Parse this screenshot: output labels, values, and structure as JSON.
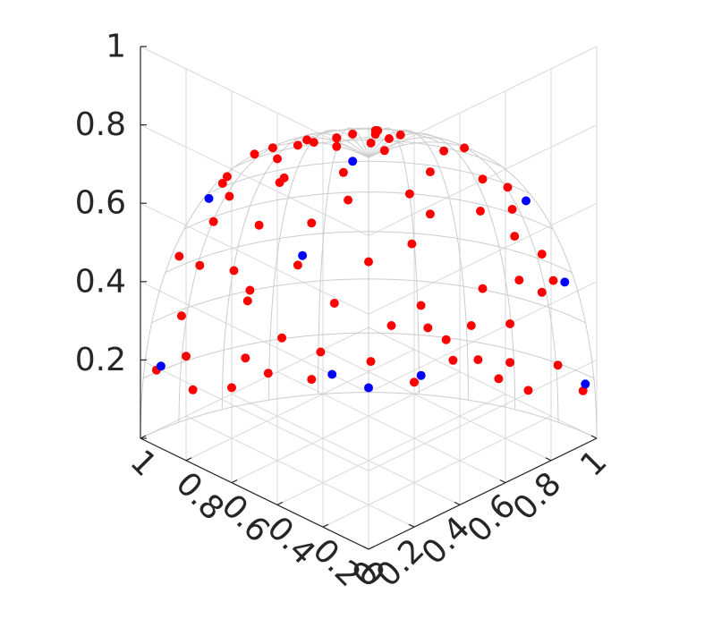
{
  "chart_data": {
    "type": "scatter",
    "projection": "3d-isometric",
    "title": "",
    "xlabel": "",
    "ylabel": "",
    "zlabel": "",
    "xlim": [
      0,
      1
    ],
    "ylim": [
      0,
      1
    ],
    "zlim": [
      0,
      1
    ],
    "x_ticks": [
      "0",
      "0.2",
      "0.4",
      "0.6",
      "0.8",
      "1"
    ],
    "y_ticks": [
      "0",
      "0.2",
      "0.4",
      "0.6",
      "0.8",
      "1"
    ],
    "z_ticks": [
      "0.2",
      "0.4",
      "0.6",
      "0.8",
      "1"
    ],
    "grid": true,
    "surface": "unit-sphere-octant-wireframe",
    "colors": {
      "red": "#ff0000",
      "blue": "#0000ff",
      "grid": "#d9d9d9",
      "axis": "#262626"
    },
    "series": [
      {
        "color": "#ff0000",
        "points": [
          [
            0.06,
            0.07,
            1.0
          ],
          [
            0.21,
            0.07,
            0.97
          ],
          [
            0.32,
            0.05,
            0.94
          ],
          [
            0.16,
            0.19,
            0.96
          ],
          [
            0.23,
            0.26,
            0.93
          ],
          [
            0.43,
            0.01,
            0.9
          ],
          [
            0.3,
            0.16,
            0.92
          ],
          [
            0.19,
            0.33,
            0.91
          ],
          [
            0.08,
            0.5,
            0.86
          ],
          [
            0.53,
            0.03,
            0.85
          ],
          [
            0.4,
            0.16,
            0.88
          ],
          [
            0.26,
            0.3,
            0.91
          ],
          [
            0.2,
            0.53,
            0.81
          ],
          [
            0.09,
            0.7,
            0.7
          ],
          [
            0.63,
            0.01,
            0.77
          ],
          [
            0.51,
            0.2,
            0.83
          ],
          [
            0.37,
            0.3,
            0.87
          ],
          [
            0.34,
            0.43,
            0.83
          ],
          [
            0.33,
            0.6,
            0.7
          ],
          [
            0.2,
            0.7,
            0.69
          ],
          [
            0.14,
            0.77,
            0.61
          ],
          [
            0.68,
            0.04,
            0.73
          ],
          [
            0.6,
            0.2,
            0.77
          ],
          [
            0.49,
            0.35,
            0.79
          ],
          [
            0.42,
            0.49,
            0.76
          ],
          [
            0.47,
            0.65,
            0.59
          ],
          [
            0.29,
            0.78,
            0.56
          ],
          [
            0.19,
            0.83,
            0.51
          ],
          [
            0.73,
            0.12,
            0.66
          ],
          [
            0.64,
            0.27,
            0.69
          ],
          [
            0.57,
            0.46,
            0.67
          ],
          [
            0.44,
            0.71,
            0.53
          ],
          [
            0.36,
            0.86,
            0.32
          ],
          [
            0.23,
            0.89,
            0.37
          ],
          [
            0.12,
            0.88,
            0.47
          ],
          [
            0.87,
            0.04,
            0.49
          ],
          [
            0.81,
            0.13,
            0.57
          ],
          [
            0.7,
            0.31,
            0.65
          ],
          [
            0.63,
            0.54,
            0.56
          ],
          [
            0.54,
            0.73,
            0.42
          ],
          [
            0.43,
            0.88,
            0.2
          ],
          [
            0.3,
            0.92,
            0.23
          ],
          [
            0.16,
            0.92,
            0.35
          ],
          [
            0.1,
            0.91,
            0.4
          ],
          [
            0.89,
            0.15,
            0.43
          ],
          [
            0.8,
            0.32,
            0.51
          ],
          [
            0.73,
            0.48,
            0.49
          ],
          [
            0.66,
            0.66,
            0.36
          ],
          [
            0.56,
            0.79,
            0.24
          ],
          [
            0.51,
            0.85,
            0.15
          ],
          [
            0.42,
            0.9,
            0.11
          ],
          [
            0.32,
            0.94,
            0.12
          ],
          [
            0.15,
            0.98,
            0.15
          ],
          [
            0.05,
            0.99,
            0.11
          ],
          [
            0.95,
            0.13,
            0.29
          ],
          [
            0.88,
            0.29,
            0.38
          ],
          [
            0.8,
            0.49,
            0.36
          ],
          [
            0.76,
            0.61,
            0.24
          ],
          [
            0.64,
            0.74,
            0.18
          ],
          [
            0.55,
            0.81,
            0.18
          ],
          [
            0.49,
            0.86,
            0.1
          ],
          [
            0.36,
            0.93,
            0.07
          ],
          [
            0.26,
            0.96,
            0.06
          ],
          [
            0.97,
            0.17,
            0.17
          ],
          [
            0.89,
            0.36,
            0.28
          ],
          [
            0.86,
            0.48,
            0.16
          ],
          [
            0.8,
            0.59,
            0.11
          ],
          [
            0.7,
            0.71,
            0.08
          ],
          [
            0.6,
            0.8,
            0.03
          ],
          [
            0.99,
            0.06,
            0.16
          ],
          [
            0.92,
            0.38,
            0.12
          ],
          [
            0.89,
            0.45,
            0.07
          ],
          [
            0.82,
            0.57,
            0.04
          ],
          [
            0.94,
            0.34,
            0.05
          ],
          [
            0.98,
            0.21,
            0.07
          ],
          [
            0.88,
            0.36,
            0.31
          ]
        ]
      },
      {
        "color": "#0000ff",
        "points": [
          [
            0.73,
            0.03,
            0.68
          ],
          [
            0.06,
            0.75,
            0.66
          ],
          [
            0.53,
            0.46,
            0.71
          ],
          [
            0.05,
            0.91,
            0.41
          ],
          [
            0.78,
            0.49,
            0.39
          ],
          [
            0.04,
            0.99,
            0.13
          ],
          [
            0.98,
            0.07,
            0.17
          ],
          [
            0.58,
            0.81,
            0.05
          ],
          [
            0.78,
            0.62,
            0.05
          ],
          [
            0.71,
            0.71,
            0.01
          ]
        ]
      }
    ]
  }
}
